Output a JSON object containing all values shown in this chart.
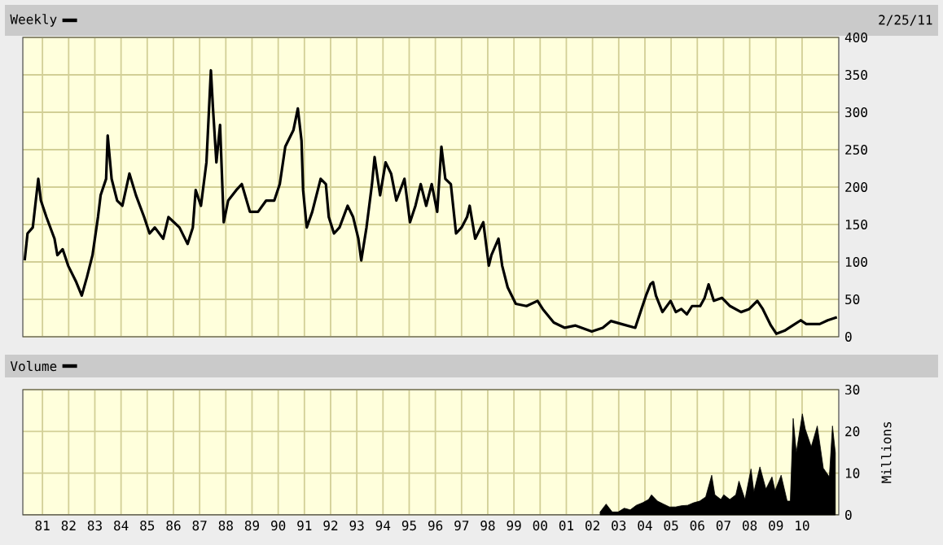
{
  "chart_data": [
    {
      "type": "line",
      "annotations": [
        "2/25/11"
      ],
      "legend": "top left",
      "grid": true,
      "tick_labels": "y",
      "marker": "none",
      "xlim": [
        1980.25,
        2011.4
      ],
      "ylim": [
        0,
        400
      ],
      "xticks": [
        1981,
        1982,
        1983,
        1984,
        1985,
        1986,
        1987,
        1988,
        1989,
        1990,
        1991,
        1992,
        1993,
        1994,
        1995,
        1996,
        1997,
        1998,
        1999,
        2000,
        2001,
        2002,
        2003,
        2004,
        2005,
        2006,
        2007,
        2008,
        2009,
        2010
      ],
      "yticks": [
        0,
        50,
        100,
        150,
        200,
        250,
        300,
        350,
        400
      ],
      "series": [
        {
          "name": "Weekly",
          "color": "#000000",
          "x": [
            1980.32,
            1980.43,
            1980.63,
            1980.84,
            1980.94,
            1981.15,
            1981.46,
            1981.57,
            1981.77,
            1981.98,
            1982.29,
            1982.5,
            1982.7,
            1982.91,
            1983.12,
            1983.22,
            1983.43,
            1983.49,
            1983.64,
            1983.85,
            1984.05,
            1984.32,
            1984.57,
            1984.88,
            1985.09,
            1985.29,
            1985.61,
            1985.81,
            1986.02,
            1986.23,
            1986.54,
            1986.74,
            1986.85,
            1987.05,
            1987.26,
            1987.43,
            1987.51,
            1987.64,
            1987.78,
            1987.92,
            1988.09,
            1988.4,
            1988.61,
            1988.92,
            1989.23,
            1989.54,
            1989.85,
            1990.06,
            1990.27,
            1990.58,
            1990.75,
            1990.89,
            1990.95,
            1991.09,
            1991.3,
            1991.62,
            1991.82,
            1991.93,
            1992.13,
            1992.34,
            1992.65,
            1992.86,
            1993.06,
            1993.17,
            1993.37,
            1993.58,
            1993.68,
            1993.89,
            1994.1,
            1994.31,
            1994.51,
            1994.82,
            1995.03,
            1995.24,
            1995.44,
            1995.65,
            1995.86,
            1996.07,
            1996.23,
            1996.38,
            1996.59,
            1996.79,
            1997.0,
            1997.21,
            1997.31,
            1997.52,
            1997.83,
            1998.04,
            1998.14,
            1998.41,
            1998.55,
            1998.76,
            1999.07,
            1999.48,
            1999.9,
            2000.1,
            2000.52,
            2000.94,
            2001.35,
            2001.97,
            2002.39,
            2002.7,
            2003.11,
            2003.63,
            2003.83,
            2004.04,
            2004.21,
            2004.31,
            2004.42,
            2004.67,
            2004.98,
            2005.18,
            2005.39,
            2005.6,
            2005.8,
            2006.11,
            2006.28,
            2006.43,
            2006.63,
            2006.94,
            2007.25,
            2007.67,
            2007.98,
            2008.29,
            2008.5,
            2008.81,
            2009.02,
            2009.33,
            2009.64,
            2009.95,
            2010.16,
            2010.67,
            2010.98,
            2011.33
          ],
          "values": [
            102,
            138,
            146,
            211,
            182,
            160,
            131,
            109,
            117,
            95,
            73,
            55,
            80,
            109,
            160,
            189,
            211,
            269,
            211,
            182,
            175,
            218,
            189,
            160,
            138,
            146,
            131,
            160,
            153,
            146,
            124,
            146,
            196,
            175,
            233,
            356,
            305,
            233,
            283,
            153,
            182,
            196,
            204,
            167,
            167,
            182,
            182,
            204,
            254,
            276,
            305,
            262,
            196,
            146,
            167,
            211,
            204,
            160,
            138,
            146,
            175,
            160,
            131,
            102,
            146,
            204,
            240,
            189,
            233,
            218,
            182,
            211,
            153,
            175,
            204,
            175,
            204,
            167,
            254,
            211,
            204,
            138,
            146,
            160,
            175,
            131,
            153,
            95,
            109,
            131,
            95,
            66,
            44,
            41,
            48,
            37,
            19,
            12,
            15,
            7,
            12,
            21,
            17,
            12,
            33,
            55,
            70,
            73,
            55,
            33,
            48,
            33,
            37,
            30,
            41,
            41,
            52,
            70,
            48,
            52,
            41,
            33,
            37,
            48,
            37,
            15,
            4,
            8,
            15,
            22,
            17,
            17,
            22,
            26
          ]
        }
      ]
    },
    {
      "type": "area",
      "legend": "top left",
      "grid": true,
      "ylabel": "Millions",
      "xlim": [
        1980.25,
        2011.4
      ],
      "ylim": [
        0,
        30
      ],
      "xticks": [
        {
          "value": 1981,
          "label": "81"
        },
        {
          "value": 1982,
          "label": "82"
        },
        {
          "value": 1983,
          "label": "83"
        },
        {
          "value": 1984,
          "label": "84"
        },
        {
          "value": 1985,
          "label": "85"
        },
        {
          "value": 1986,
          "label": "86"
        },
        {
          "value": 1987,
          "label": "87"
        },
        {
          "value": 1988,
          "label": "88"
        },
        {
          "value": 1989,
          "label": "89"
        },
        {
          "value": 1990,
          "label": "90"
        },
        {
          "value": 1991,
          "label": "91"
        },
        {
          "value": 1992,
          "label": "92"
        },
        {
          "value": 1993,
          "label": "93"
        },
        {
          "value": 1994,
          "label": "94"
        },
        {
          "value": 1995,
          "label": "95"
        },
        {
          "value": 1996,
          "label": "96"
        },
        {
          "value": 1997,
          "label": "97"
        },
        {
          "value": 1998,
          "label": "98"
        },
        {
          "value": 1999,
          "label": "99"
        },
        {
          "value": 2000,
          "label": "00"
        },
        {
          "value": 2001,
          "label": "01"
        },
        {
          "value": 2002,
          "label": "02"
        },
        {
          "value": 2003,
          "label": "03"
        },
        {
          "value": 2004,
          "label": "04"
        },
        {
          "value": 2005,
          "label": "05"
        },
        {
          "value": 2006,
          "label": "06"
        },
        {
          "value": 2007,
          "label": "07"
        },
        {
          "value": 2008,
          "label": "08"
        },
        {
          "value": 2009,
          "label": "09"
        },
        {
          "value": 2010,
          "label": "10"
        }
      ],
      "yticks": [
        0,
        10,
        20,
        30
      ],
      "series": [
        {
          "name": "Volume",
          "color": "#000000",
          "x": [
            2002.29,
            2002.52,
            2002.75,
            2002.98,
            2003.21,
            2003.44,
            2003.67,
            2003.91,
            2004.14,
            2004.25,
            2004.48,
            2004.71,
            2004.94,
            2005.17,
            2005.4,
            2005.63,
            2005.86,
            2006.09,
            2006.32,
            2006.55,
            2006.67,
            2006.9,
            2007.01,
            2007.24,
            2007.47,
            2007.59,
            2007.82,
            2008.05,
            2008.16,
            2008.39,
            2008.62,
            2008.85,
            2008.97,
            2009.2,
            2009.43,
            2009.55,
            2009.66,
            2009.78,
            2010.01,
            2010.12,
            2010.35,
            2010.58,
            2010.81,
            2011.04,
            2011.16,
            2011.27
          ],
          "values": [
            0.7,
            2.6,
            0.7,
            0.7,
            1.6,
            1.2,
            2.3,
            2.9,
            3.7,
            4.8,
            3.3,
            2.6,
            1.9,
            1.9,
            2.2,
            2.3,
            2.9,
            3.3,
            4.3,
            9.5,
            4.8,
            3.7,
            4.8,
            3.7,
            4.8,
            8.1,
            3.7,
            11.0,
            5.5,
            11.5,
            6.2,
            9.1,
            5.8,
            9.5,
            3.3,
            3.3,
            23.1,
            14.9,
            24.2,
            20.6,
            16.3,
            21.3,
            11.2,
            9.1,
            21.3,
            14.9
          ]
        }
      ]
    }
  ]
}
